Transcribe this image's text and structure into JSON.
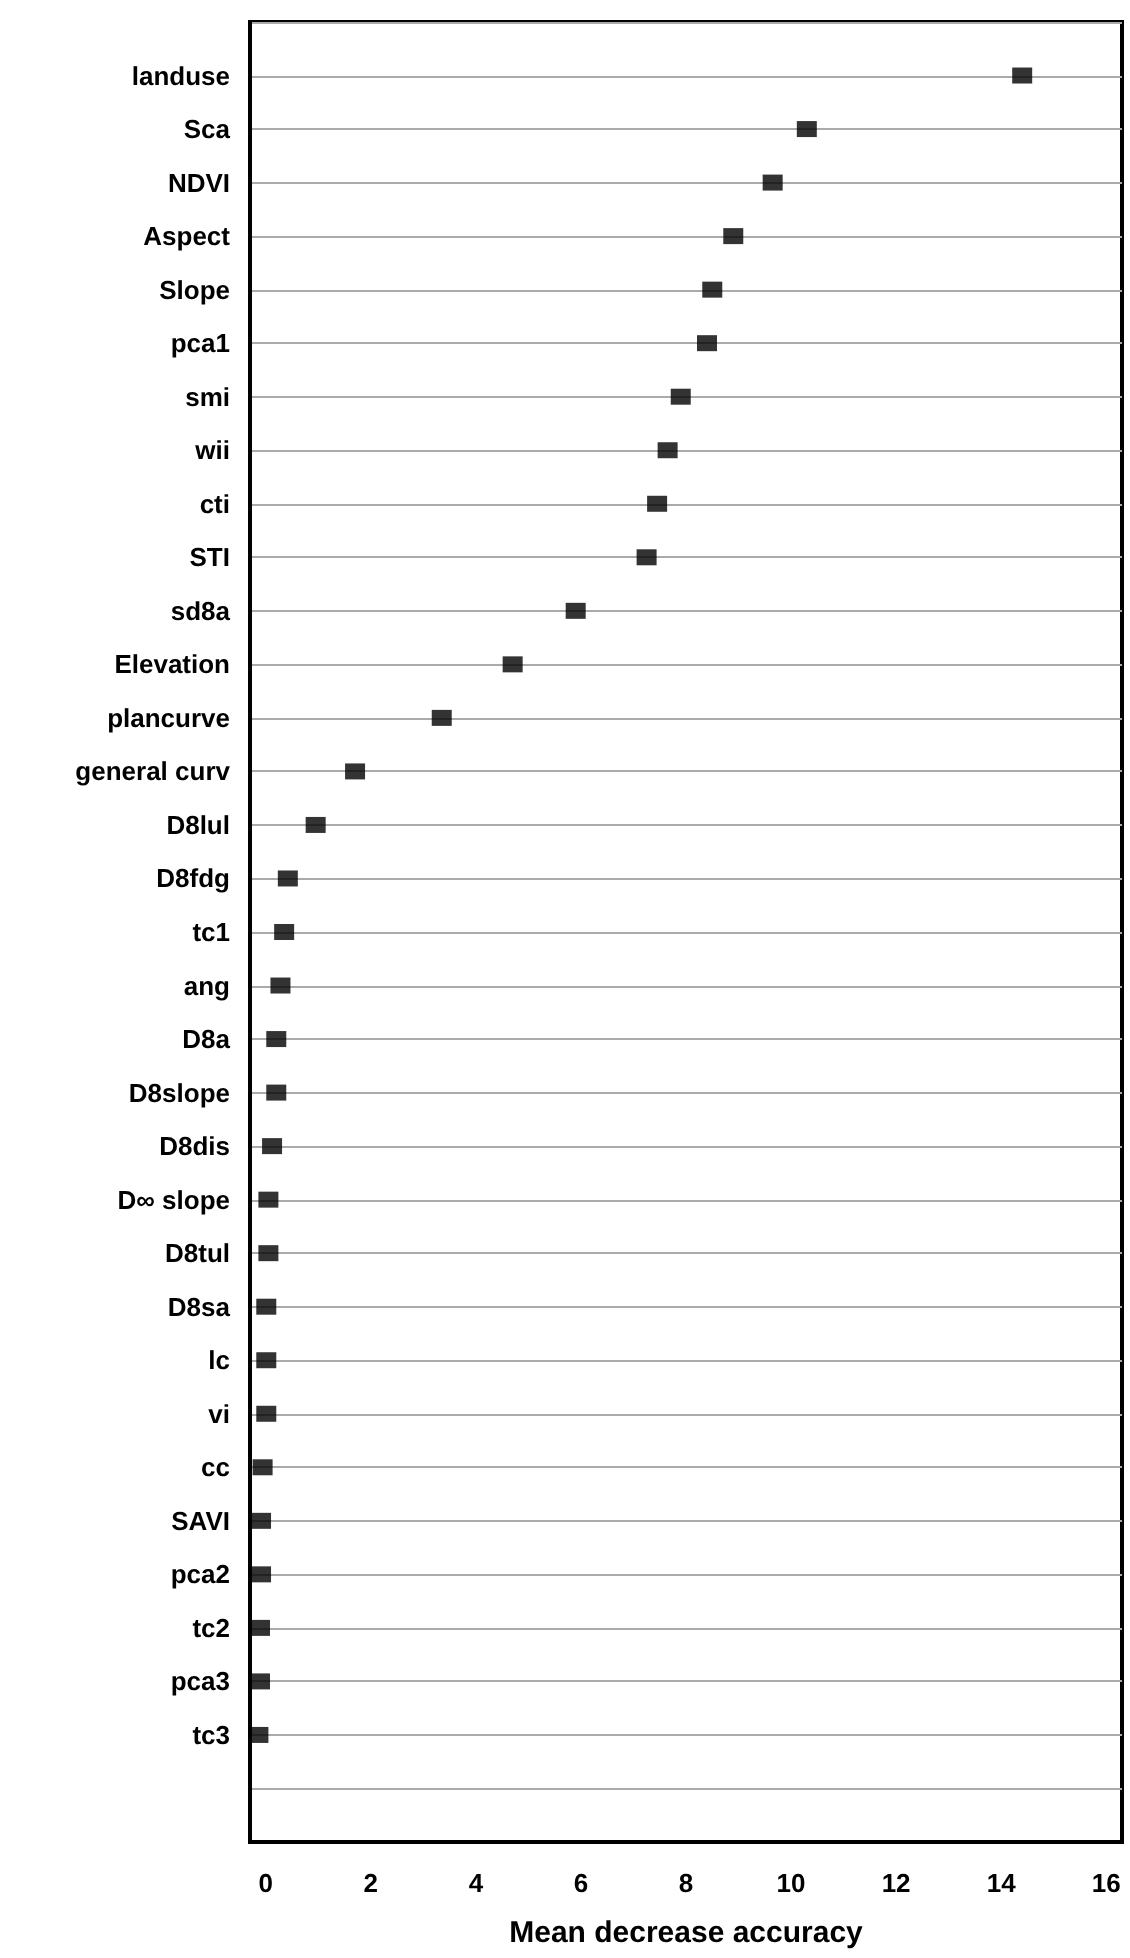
{
  "chart_data": {
    "type": "scatter",
    "orientation": "horizontal",
    "xlabel": "Mean decrease accuracy",
    "categories": [
      null,
      "landuse",
      "Sca",
      "NDVI",
      "Aspect",
      "Slope",
      "pca1",
      "smi",
      "wii",
      "cti",
      "STI",
      "sd8a",
      "Elevation",
      "plancurve",
      "general curv",
      "D8lul",
      "D8fdg",
      "tc1",
      "ang",
      "D8a",
      "D8slope",
      "D8dis",
      "D∞ slope",
      "D8tul",
      "D8sa",
      "lc",
      "vi",
      "cc",
      "SAVI",
      "pca2",
      "tc2",
      "pca3",
      "tc3",
      null,
      null
    ],
    "values": [
      null,
      14.4,
      10.3,
      9.65,
      8.9,
      8.5,
      8.4,
      7.9,
      7.65,
      7.45,
      7.25,
      5.9,
      4.7,
      3.35,
      1.7,
      0.95,
      0.42,
      0.35,
      0.28,
      0.2,
      0.2,
      0.12,
      0.05,
      0.05,
      0.01,
      0.01,
      0.01,
      -0.06,
      -0.09,
      -0.09,
      -0.11,
      -0.11,
      -0.14,
      null,
      null
    ],
    "color": "#000000",
    "marker": "square",
    "grid": "y",
    "xlim": [
      -0.3,
      16.3
    ],
    "xticks": [
      0,
      2,
      4,
      6,
      8,
      10,
      12,
      14,
      16
    ]
  }
}
